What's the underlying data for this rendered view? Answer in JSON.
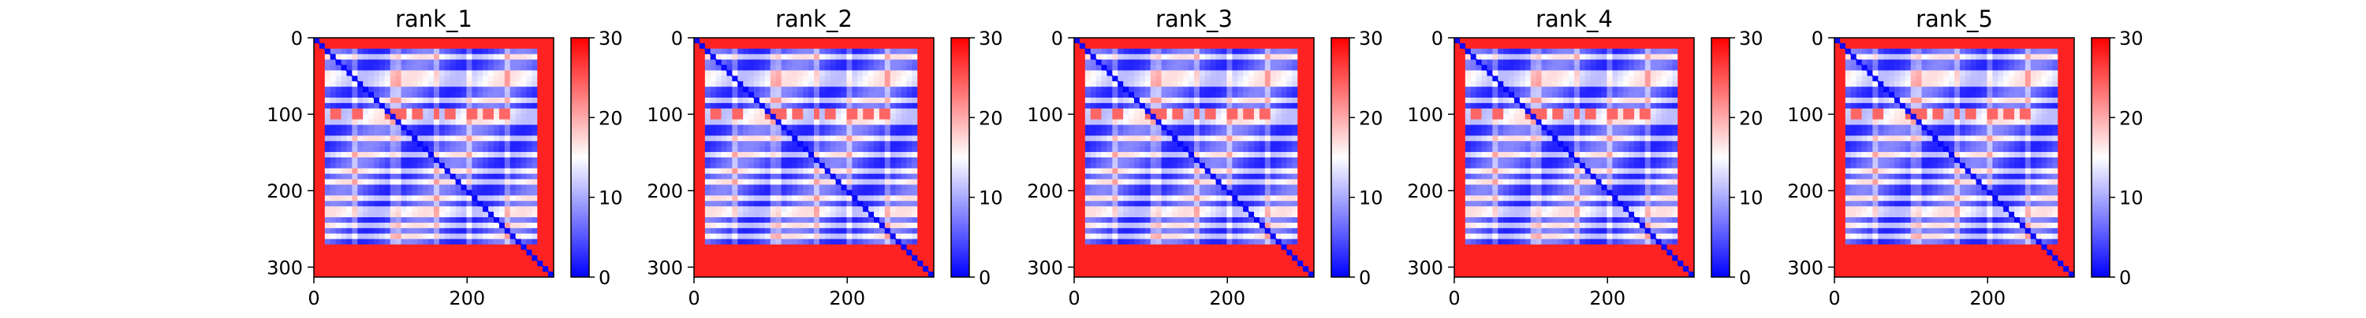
{
  "chart_data": [
    {
      "type": "heatmap",
      "title": "rank_1",
      "x_ticks": [
        0,
        200
      ],
      "y_ticks": [
        0,
        100,
        200,
        300
      ],
      "xlim": [
        0,
        313
      ],
      "ylim": [
        313,
        0
      ],
      "colorbar": {
        "ticks": [
          0,
          10,
          20,
          30
        ],
        "range": [
          0,
          30
        ],
        "colormap": [
          "#0000ff",
          "#ffffff",
          "#ff0000"
        ]
      },
      "bright_rows": [
        22,
        50,
        58,
        80,
        100,
        108,
        130,
        150,
        172,
        190,
        212,
        228,
        248,
        262
      ],
      "bright_cols": [
        28,
        55,
        102,
        112,
        135,
        160,
        178,
        205,
        228,
        250
      ]
    },
    {
      "type": "heatmap",
      "title": "rank_2",
      "x_ticks": [
        0,
        200
      ],
      "y_ticks": [
        0,
        100,
        200,
        300
      ],
      "xlim": [
        0,
        313
      ],
      "ylim": [
        313,
        0
      ],
      "colorbar": {
        "ticks": [
          0,
          10,
          20,
          30
        ],
        "range": [
          0,
          30
        ],
        "colormap": [
          "#0000ff",
          "#ffffff",
          "#ff0000"
        ]
      },
      "bright_rows": [
        22,
        50,
        58,
        80,
        100,
        108,
        130,
        150,
        172,
        190,
        212,
        228,
        248,
        262
      ],
      "bright_cols": [
        28,
        55,
        102,
        112,
        135,
        160,
        178,
        205,
        228,
        250
      ]
    },
    {
      "type": "heatmap",
      "title": "rank_3",
      "x_ticks": [
        0,
        200
      ],
      "y_ticks": [
        0,
        100,
        200,
        300
      ],
      "xlim": [
        0,
        313
      ],
      "ylim": [
        313,
        0
      ],
      "colorbar": {
        "ticks": [
          0,
          10,
          20,
          30
        ],
        "range": [
          0,
          30
        ],
        "colormap": [
          "#0000ff",
          "#ffffff",
          "#ff0000"
        ]
      },
      "bright_rows": [
        22,
        50,
        58,
        80,
        100,
        108,
        130,
        150,
        172,
        190,
        212,
        228,
        248,
        262
      ],
      "bright_cols": [
        28,
        55,
        102,
        112,
        135,
        160,
        178,
        205,
        228,
        250
      ]
    },
    {
      "type": "heatmap",
      "title": "rank_4",
      "x_ticks": [
        0,
        200
      ],
      "y_ticks": [
        0,
        100,
        200,
        300
      ],
      "xlim": [
        0,
        313
      ],
      "ylim": [
        313,
        0
      ],
      "colorbar": {
        "ticks": [
          0,
          10,
          20,
          30
        ],
        "range": [
          0,
          30
        ],
        "colormap": [
          "#0000ff",
          "#ffffff",
          "#ff0000"
        ]
      },
      "bright_rows": [
        22,
        50,
        58,
        80,
        100,
        108,
        130,
        150,
        172,
        190,
        212,
        228,
        248,
        262
      ],
      "bright_cols": [
        28,
        55,
        102,
        112,
        135,
        160,
        178,
        205,
        228,
        250
      ]
    },
    {
      "type": "heatmap",
      "title": "rank_5",
      "x_ticks": [
        0,
        200
      ],
      "y_ticks": [
        0,
        100,
        200,
        300
      ],
      "xlim": [
        0,
        313
      ],
      "ylim": [
        313,
        0
      ],
      "colorbar": {
        "ticks": [
          0,
          10,
          20,
          30
        ],
        "range": [
          0,
          30
        ],
        "colormap": [
          "#0000ff",
          "#ffffff",
          "#ff0000"
        ]
      },
      "bright_rows": [
        22,
        50,
        58,
        80,
        100,
        108,
        130,
        150,
        172,
        190,
        212,
        228,
        248,
        262
      ],
      "bright_cols": [
        28,
        55,
        102,
        112,
        135,
        160,
        178,
        205,
        228,
        250
      ]
    }
  ]
}
